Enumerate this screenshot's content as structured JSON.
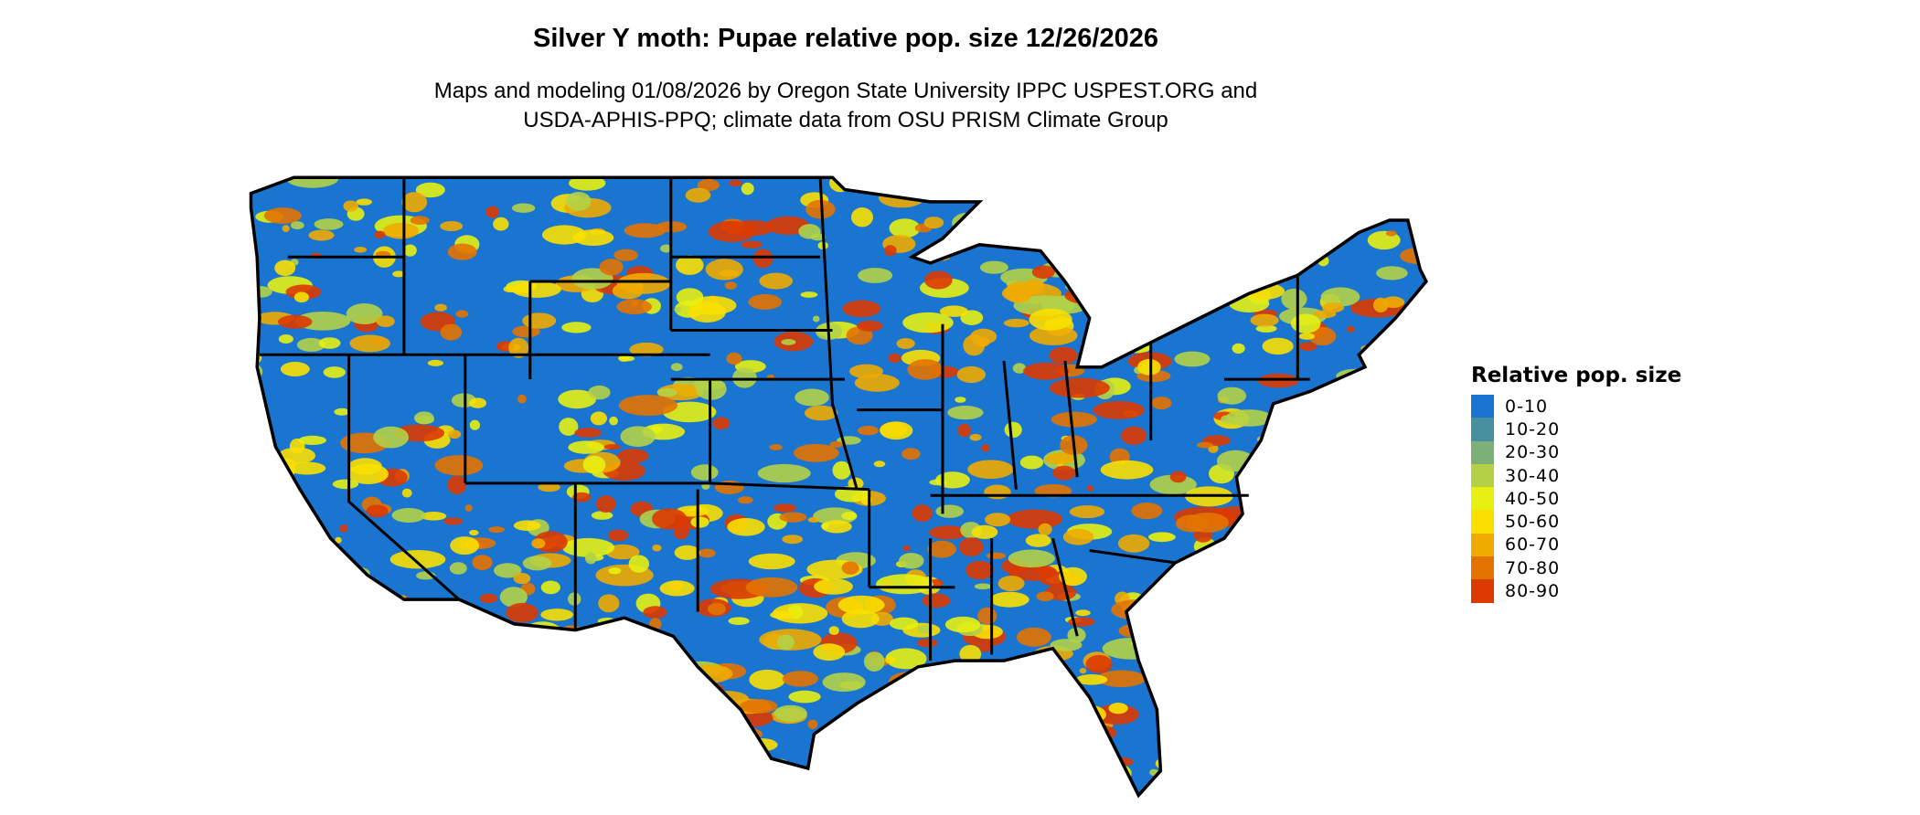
{
  "title": "Silver Y moth: Pupae relative pop. size 12/26/2026",
  "subtitle_line1": "Maps and modeling 01/08/2026 by Oregon State University IPPC USPEST.ORG and",
  "subtitle_line2": "USDA-APHIS-PPQ; climate data from OSU PRISM Climate Group",
  "map": {
    "region": "Contiguous United States",
    "background_class": "0-10",
    "state_border_color": "#000000"
  },
  "legend": {
    "title": "Relative pop. size",
    "items": [
      {
        "label": "0-10",
        "color": "#1a75d1"
      },
      {
        "label": "10-20",
        "color": "#478f9e"
      },
      {
        "label": "20-30",
        "color": "#7db077"
      },
      {
        "label": "30-40",
        "color": "#b3d147"
      },
      {
        "label": "40-50",
        "color": "#e6f012"
      },
      {
        "label": "50-60",
        "color": "#fae000"
      },
      {
        "label": "60-70",
        "color": "#f0ab00"
      },
      {
        "label": "70-80",
        "color": "#e37300"
      },
      {
        "label": "80-90",
        "color": "#db3a00"
      }
    ]
  }
}
